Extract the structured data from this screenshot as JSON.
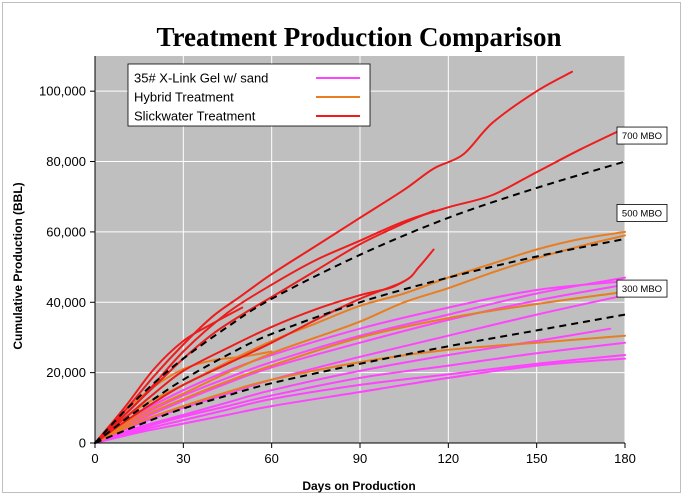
{
  "chart_data": {
    "type": "line",
    "title": "Treatment Production Comparison",
    "xlabel": "Days on Production",
    "ylabel": "Cumulative Production (BBL)",
    "xlim": [
      0,
      180
    ],
    "ylim": [
      0,
      110000
    ],
    "x_ticks": [
      0,
      30,
      60,
      90,
      120,
      150,
      180
    ],
    "y_ticks": [
      0,
      20000,
      40000,
      60000,
      80000,
      100000
    ],
    "y_tick_labels": [
      "0",
      "20,000",
      "40,000",
      "60,000",
      "80,000",
      "100,000"
    ],
    "grid": true,
    "legend_position": "top-left",
    "legend": [
      {
        "label": "35# X-Link Gel w/ sand",
        "color": "#ff44ff"
      },
      {
        "label": "Hybrid Treatment",
        "color": "#e87d22"
      },
      {
        "label": "Slickwater Treatment",
        "color": "#ee1c1c"
      }
    ],
    "colors": {
      "plot_background": "#bfbfbf",
      "gridline": "#ffffff",
      "gel": "#ff44ff",
      "hybrid": "#e87d22",
      "slickwater": "#ee1c1c",
      "type_curve": "#000000"
    },
    "type_curves": [
      {
        "label": "700 MBO",
        "points": [
          [
            0,
            0
          ],
          [
            10,
            9000
          ],
          [
            20,
            17000
          ],
          [
            30,
            24000
          ],
          [
            45,
            33000
          ],
          [
            60,
            41000
          ],
          [
            90,
            53500
          ],
          [
            120,
            64000
          ],
          [
            150,
            72500
          ],
          [
            180,
            80000
          ]
        ]
      },
      {
        "label": "500 MBO",
        "points": [
          [
            0,
            0
          ],
          [
            10,
            6500
          ],
          [
            20,
            12500
          ],
          [
            30,
            18000
          ],
          [
            45,
            25000
          ],
          [
            60,
            31000
          ],
          [
            90,
            40000
          ],
          [
            120,
            47000
          ],
          [
            150,
            53000
          ],
          [
            180,
            58000
          ]
        ]
      },
      {
        "label": "300 MBO",
        "points": [
          [
            0,
            0
          ],
          [
            10,
            3500
          ],
          [
            20,
            6800
          ],
          [
            30,
            9800
          ],
          [
            45,
            13500
          ],
          [
            60,
            17000
          ],
          [
            90,
            22500
          ],
          [
            120,
            27500
          ],
          [
            150,
            32000
          ],
          [
            180,
            36500
          ]
        ]
      }
    ],
    "series": [
      {
        "group": "slickwater",
        "points": [
          [
            0,
            0
          ],
          [
            10,
            9000
          ],
          [
            20,
            19000
          ],
          [
            30,
            28000
          ],
          [
            40,
            36000
          ],
          [
            50,
            42000
          ],
          [
            60,
            48000
          ],
          [
            75,
            56000
          ],
          [
            90,
            64000
          ],
          [
            105,
            72000
          ],
          [
            115,
            78000
          ],
          [
            125,
            82000
          ],
          [
            135,
            91000
          ],
          [
            150,
            100000
          ],
          [
            162,
            105500
          ]
        ]
      },
      {
        "group": "slickwater",
        "points": [
          [
            0,
            0
          ],
          [
            15,
            12000
          ],
          [
            30,
            26000
          ],
          [
            45,
            37000
          ],
          [
            60,
            45000
          ],
          [
            75,
            52000
          ],
          [
            90,
            57500
          ],
          [
            105,
            63000
          ],
          [
            120,
            67000
          ],
          [
            135,
            70500
          ],
          [
            150,
            77000
          ],
          [
            165,
            83500
          ],
          [
            180,
            89500
          ]
        ]
      },
      {
        "group": "slickwater",
        "points": [
          [
            0,
            0
          ],
          [
            10,
            8000
          ],
          [
            20,
            16000
          ],
          [
            30,
            24000
          ],
          [
            40,
            31000
          ],
          [
            50,
            36500
          ],
          [
            60,
            41500
          ],
          [
            75,
            49000
          ],
          [
            90,
            56500
          ],
          [
            105,
            62500
          ],
          [
            115,
            66000
          ]
        ]
      },
      {
        "group": "slickwater",
        "points": [
          [
            0,
            0
          ],
          [
            10,
            7000
          ],
          [
            20,
            14000
          ],
          [
            30,
            20500
          ],
          [
            45,
            27000
          ],
          [
            60,
            33000
          ],
          [
            75,
            38000
          ],
          [
            90,
            42000
          ],
          [
            100,
            44000
          ],
          [
            105,
            46000
          ]
        ]
      },
      {
        "group": "slickwater",
        "points": [
          [
            0,
            0
          ],
          [
            10,
            6000
          ],
          [
            20,
            11500
          ],
          [
            30,
            16500
          ],
          [
            45,
            22500
          ],
          [
            60,
            28500
          ],
          [
            75,
            35000
          ],
          [
            90,
            41000
          ],
          [
            105,
            46000
          ],
          [
            110,
            50000
          ],
          [
            115,
            55000
          ]
        ]
      },
      {
        "group": "slickwater",
        "points": [
          [
            0,
            0
          ],
          [
            10,
            10000
          ],
          [
            20,
            21000
          ],
          [
            30,
            29000
          ],
          [
            40,
            34000
          ],
          [
            50,
            38500
          ]
        ]
      },
      {
        "group": "hybrid",
        "points": [
          [
            0,
            0
          ],
          [
            15,
            10000
          ],
          [
            30,
            16500
          ],
          [
            45,
            23000
          ],
          [
            60,
            29000
          ],
          [
            75,
            34000
          ],
          [
            90,
            39000
          ],
          [
            105,
            42500
          ],
          [
            120,
            47000
          ],
          [
            135,
            51000
          ],
          [
            150,
            55000
          ],
          [
            165,
            58000
          ],
          [
            180,
            60000
          ]
        ]
      },
      {
        "group": "hybrid",
        "points": [
          [
            0,
            0
          ],
          [
            15,
            8000
          ],
          [
            30,
            14000
          ],
          [
            45,
            20000
          ],
          [
            60,
            25500
          ],
          [
            75,
            30000
          ],
          [
            90,
            34500
          ],
          [
            105,
            40000
          ],
          [
            120,
            44000
          ],
          [
            135,
            48500
          ],
          [
            150,
            52500
          ],
          [
            165,
            56000
          ],
          [
            180,
            59000
          ]
        ]
      },
      {
        "group": "hybrid",
        "points": [
          [
            0,
            0
          ],
          [
            10,
            9000
          ],
          [
            20,
            16000
          ],
          [
            30,
            21000
          ],
          [
            40,
            23500
          ],
          [
            50,
            24500
          ],
          [
            60,
            26000
          ]
        ]
      },
      {
        "group": "hybrid",
        "points": [
          [
            0,
            0
          ],
          [
            15,
            7000
          ],
          [
            30,
            12500
          ],
          [
            45,
            17500
          ],
          [
            60,
            22000
          ],
          [
            90,
            30000
          ],
          [
            120,
            35500
          ],
          [
            150,
            39500
          ],
          [
            180,
            43000
          ]
        ]
      },
      {
        "group": "hybrid",
        "points": [
          [
            0,
            0
          ],
          [
            15,
            6000
          ],
          [
            30,
            10500
          ],
          [
            45,
            14500
          ],
          [
            60,
            18000
          ],
          [
            90,
            23000
          ],
          [
            120,
            26500
          ],
          [
            150,
            28500
          ],
          [
            180,
            30500
          ]
        ]
      },
      {
        "group": "gel",
        "points": [
          [
            0,
            0
          ],
          [
            15,
            7500
          ],
          [
            30,
            13500
          ],
          [
            45,
            18500
          ],
          [
            60,
            23000
          ],
          [
            90,
            30500
          ],
          [
            120,
            36500
          ],
          [
            150,
            42500
          ],
          [
            180,
            47000
          ]
        ]
      },
      {
        "group": "gel",
        "points": [
          [
            0,
            0
          ],
          [
            15,
            6500
          ],
          [
            30,
            12000
          ],
          [
            45,
            17000
          ],
          [
            60,
            21500
          ],
          [
            90,
            28500
          ],
          [
            120,
            35000
          ],
          [
            150,
            40500
          ],
          [
            180,
            45000
          ]
        ]
      },
      {
        "group": "gel",
        "points": [
          [
            0,
            0
          ],
          [
            15,
            5500
          ],
          [
            30,
            10000
          ],
          [
            45,
            14000
          ],
          [
            60,
            18000
          ],
          [
            90,
            24500
          ],
          [
            120,
            30500
          ],
          [
            150,
            36500
          ],
          [
            180,
            42000
          ]
        ]
      },
      {
        "group": "gel",
        "points": [
          [
            0,
            0
          ],
          [
            15,
            4500
          ],
          [
            30,
            8000
          ],
          [
            45,
            11500
          ],
          [
            60,
            15000
          ],
          [
            90,
            20500
          ],
          [
            120,
            25000
          ],
          [
            150,
            29000
          ],
          [
            175,
            32500
          ]
        ]
      },
      {
        "group": "gel",
        "points": [
          [
            0,
            0
          ],
          [
            15,
            4000
          ],
          [
            30,
            7500
          ],
          [
            45,
            10500
          ],
          [
            60,
            13500
          ],
          [
            90,
            18500
          ],
          [
            120,
            22000
          ],
          [
            150,
            25500
          ],
          [
            180,
            28500
          ]
        ]
      },
      {
        "group": "gel",
        "points": [
          [
            0,
            0
          ],
          [
            15,
            3500
          ],
          [
            30,
            6500
          ],
          [
            45,
            9500
          ],
          [
            60,
            12500
          ],
          [
            90,
            16500
          ],
          [
            120,
            19500
          ],
          [
            150,
            22500
          ],
          [
            180,
            25000
          ]
        ]
      },
      {
        "group": "gel",
        "points": [
          [
            0,
            0
          ],
          [
            15,
            3000
          ],
          [
            30,
            5500
          ],
          [
            45,
            8000
          ],
          [
            60,
            10500
          ],
          [
            90,
            14500
          ],
          [
            120,
            18500
          ],
          [
            150,
            22000
          ],
          [
            180,
            24000
          ]
        ]
      },
      {
        "group": "gel",
        "points": [
          [
            0,
            0
          ],
          [
            15,
            8500
          ],
          [
            30,
            15000
          ],
          [
            45,
            20500
          ],
          [
            60,
            25000
          ],
          [
            90,
            32500
          ],
          [
            120,
            38500
          ],
          [
            150,
            43500
          ],
          [
            180,
            46000
          ]
        ]
      }
    ]
  }
}
